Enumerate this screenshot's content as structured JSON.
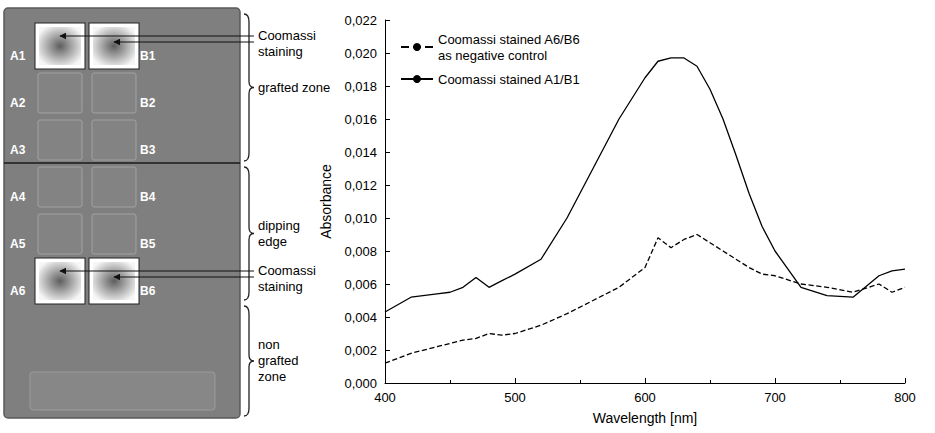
{
  "chart_data": {
    "type": "line",
    "x_label": "Wavelength [nm]",
    "y_label": "Absorbance",
    "x": [
      400,
      420,
      440,
      450,
      460,
      470,
      480,
      490,
      500,
      520,
      540,
      560,
      580,
      600,
      610,
      620,
      630,
      640,
      650,
      660,
      670,
      680,
      690,
      700,
      720,
      740,
      760,
      780,
      790,
      800
    ],
    "series": [
      {
        "name": "Coomassi stained A6/B6 as negative control",
        "color": "#000000",
        "line_style": "dashed",
        "values": [
          0.0012,
          0.0018,
          0.0022,
          0.0024,
          0.0026,
          0.0027,
          0.003,
          0.0029,
          0.003,
          0.0035,
          0.0042,
          0.005,
          0.0058,
          0.007,
          0.0088,
          0.0082,
          0.0087,
          0.009,
          0.0085,
          0.008,
          0.0075,
          0.007,
          0.0066,
          0.0065,
          0.006,
          0.0058,
          0.0055,
          0.006,
          0.0055,
          0.0058
        ]
      },
      {
        "name": "Coomassi stained A1/B1",
        "color": "#000000",
        "line_style": "solid",
        "values": [
          0.0043,
          0.0052,
          0.0054,
          0.0055,
          0.0058,
          0.0064,
          0.0058,
          0.0062,
          0.0066,
          0.0075,
          0.01,
          0.013,
          0.016,
          0.0185,
          0.0195,
          0.0197,
          0.0197,
          0.0192,
          0.0178,
          0.016,
          0.0138,
          0.0115,
          0.0095,
          0.008,
          0.0058,
          0.0053,
          0.0052,
          0.0065,
          0.0068,
          0.0069
        ]
      }
    ],
    "xlim": [
      400,
      800
    ],
    "xticks": [
      400,
      500,
      600,
      700,
      800
    ],
    "ylim": [
      0,
      0.022
    ],
    "yticks": [
      {
        "value": 0,
        "label": "0,000"
      },
      {
        "value": 0.002,
        "label": "0,002"
      },
      {
        "value": 0.004,
        "label": "0,004"
      },
      {
        "value": 0.006,
        "label": "0,006"
      },
      {
        "value": 0.008,
        "label": "0,008"
      },
      {
        "value": 0.01,
        "label": "0,010"
      },
      {
        "value": 0.012,
        "label": "0,012"
      },
      {
        "value": 0.014,
        "label": "0,014"
      },
      {
        "value": 0.016,
        "label": "0,016"
      },
      {
        "value": 0.018,
        "label": "0,018"
      },
      {
        "value": 0.02,
        "label": "0,020"
      },
      {
        "value": 0.022,
        "label": "0,022"
      }
    ],
    "grid": false,
    "legend": "upper left"
  },
  "diagram": {
    "wells": [
      [
        "A1",
        "B1"
      ],
      [
        "A2",
        "B2"
      ],
      [
        "A3",
        "B3"
      ],
      [
        "A4",
        "B4"
      ],
      [
        "A5",
        "B5"
      ],
      [
        "A6",
        "B6"
      ]
    ],
    "stained": [
      "A1",
      "B1",
      "A6",
      "B6"
    ],
    "callouts": [
      {
        "text": "Coomassi staining",
        "targets": [
          "A1",
          "B1"
        ]
      },
      {
        "text": "Coomassi staining",
        "targets": [
          "A6",
          "B6"
        ]
      }
    ],
    "zones": [
      {
        "label": "grafted zone"
      },
      {
        "label": "dipping edge"
      },
      {
        "label": "non grafted zone"
      }
    ]
  }
}
